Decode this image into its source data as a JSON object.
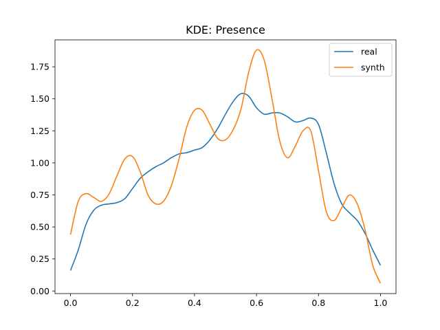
{
  "chart_data": {
    "type": "line",
    "title": "KDE: Presence",
    "xlabel": "",
    "ylabel": "",
    "xlim": [
      -0.05,
      1.05
    ],
    "ylim": [
      -0.02,
      1.96
    ],
    "xticks": [
      0.0,
      0.2,
      0.4,
      0.6,
      0.8,
      1.0
    ],
    "xtick_labels": [
      "0.0",
      "0.2",
      "0.4",
      "0.6",
      "0.8",
      "1.0"
    ],
    "yticks": [
      0.0,
      0.25,
      0.5,
      0.75,
      1.0,
      1.25,
      1.5,
      1.75
    ],
    "ytick_labels": [
      "0.00",
      "0.25",
      "0.50",
      "0.75",
      "1.00",
      "1.25",
      "1.50",
      "1.75"
    ],
    "grid": false,
    "legend_position": "upper right",
    "series": [
      {
        "name": "real",
        "color": "#1f77b4",
        "x": [
          0.0,
          0.025,
          0.05,
          0.075,
          0.1,
          0.125,
          0.15,
          0.175,
          0.2,
          0.225,
          0.25,
          0.275,
          0.3,
          0.325,
          0.35,
          0.375,
          0.4,
          0.425,
          0.45,
          0.475,
          0.5,
          0.525,
          0.55,
          0.575,
          0.6,
          0.625,
          0.65,
          0.675,
          0.7,
          0.725,
          0.75,
          0.775,
          0.8,
          0.825,
          0.85,
          0.875,
          0.9,
          0.925,
          0.95,
          0.975,
          1.0
        ],
        "y": [
          0.16,
          0.32,
          0.52,
          0.63,
          0.67,
          0.68,
          0.69,
          0.72,
          0.8,
          0.88,
          0.93,
          0.97,
          1.0,
          1.04,
          1.07,
          1.08,
          1.1,
          1.12,
          1.18,
          1.27,
          1.38,
          1.48,
          1.54,
          1.52,
          1.43,
          1.38,
          1.39,
          1.39,
          1.36,
          1.32,
          1.33,
          1.35,
          1.3,
          1.08,
          0.84,
          0.68,
          0.61,
          0.55,
          0.45,
          0.32,
          0.2
        ]
      },
      {
        "name": "synth",
        "color": "#ff7f0e",
        "x": [
          0.0,
          0.025,
          0.05,
          0.075,
          0.1,
          0.125,
          0.15,
          0.175,
          0.2,
          0.225,
          0.25,
          0.275,
          0.3,
          0.325,
          0.35,
          0.375,
          0.4,
          0.425,
          0.45,
          0.475,
          0.5,
          0.525,
          0.55,
          0.575,
          0.6,
          0.625,
          0.65,
          0.675,
          0.7,
          0.725,
          0.75,
          0.775,
          0.8,
          0.825,
          0.85,
          0.875,
          0.9,
          0.925,
          0.95,
          0.975,
          1.0
        ],
        "y": [
          0.44,
          0.7,
          0.76,
          0.73,
          0.7,
          0.76,
          0.9,
          1.03,
          1.05,
          0.93,
          0.75,
          0.68,
          0.7,
          0.82,
          1.03,
          1.28,
          1.41,
          1.41,
          1.3,
          1.19,
          1.18,
          1.26,
          1.42,
          1.71,
          1.88,
          1.8,
          1.5,
          1.17,
          1.04,
          1.13,
          1.25,
          1.25,
          0.94,
          0.62,
          0.55,
          0.65,
          0.75,
          0.68,
          0.48,
          0.2,
          0.06
        ]
      }
    ]
  }
}
